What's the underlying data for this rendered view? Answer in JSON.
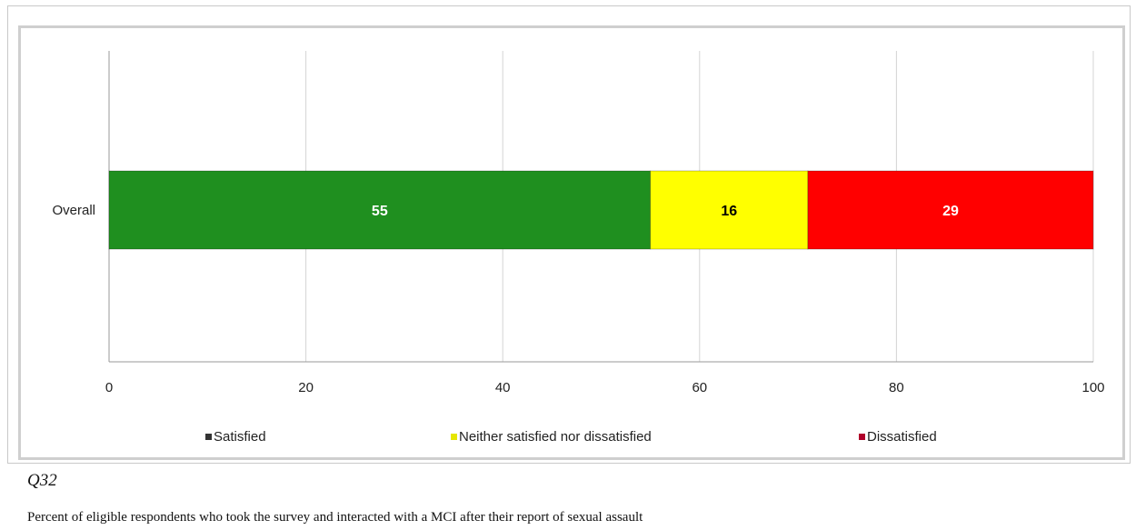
{
  "chart_data": {
    "type": "bar",
    "orientation": "horizontal",
    "stacked": true,
    "categories": [
      "Overall"
    ],
    "series": [
      {
        "name": "Satisfied",
        "values": [
          55
        ],
        "color": "#1f8f1f",
        "label_color": "#ffffff"
      },
      {
        "name": "Neither satisfied nor dissatisfied",
        "values": [
          16
        ],
        "color": "#ffff00",
        "label_color": "#000000"
      },
      {
        "name": "Dissatisfied",
        "values": [
          29
        ],
        "color": "#ff0000",
        "label_color": "#ffffff"
      }
    ],
    "xlim": [
      0,
      100
    ],
    "xticks": [
      "0",
      "20",
      "40",
      "60",
      "80",
      "100"
    ],
    "grid": true,
    "legend_position": "bottom"
  },
  "caption": {
    "question": "Q32",
    "description": "Percent of eligible respondents who took the survey and interacted with a MCI after their report of sexual assault"
  }
}
